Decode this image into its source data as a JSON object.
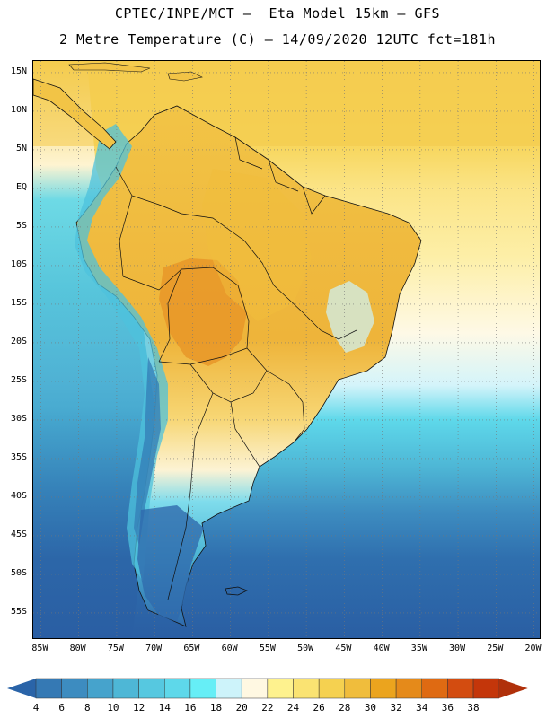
{
  "header": {
    "line1": "CPTEC/INPE/MCT —  Eta Model 15km — GFS",
    "line2": "2 Metre Temperature (C) — 14/09/2020 12UTC fct=181h"
  },
  "map": {
    "lat_labels": [
      "15N",
      "10N",
      "5N",
      "EQ",
      "5S",
      "10S",
      "15S",
      "20S",
      "25S",
      "30S",
      "35S",
      "40S",
      "45S",
      "50S",
      "55S"
    ],
    "lat_values": [
      15,
      10,
      5,
      0,
      -5,
      -10,
      -15,
      -20,
      -25,
      -30,
      -35,
      -40,
      -45,
      -50,
      -55
    ],
    "lon_labels": [
      "85W",
      "80W",
      "75W",
      "70W",
      "65W",
      "60W",
      "55W",
      "50W",
      "45W",
      "40W",
      "35W",
      "30W",
      "25W",
      "20W"
    ],
    "lon_values": [
      -85,
      -80,
      -75,
      -70,
      -65,
      -60,
      -55,
      -50,
      -45,
      -40,
      -35,
      -30,
      -25,
      -20
    ],
    "lon_range": [
      -86,
      -19
    ],
    "lat_range": [
      -58.5,
      16.5
    ],
    "grid": "dotted",
    "regions": "South America, Central America, adjacent Atlantic and Pacific oceans"
  },
  "colorbar": {
    "labels": [
      "4",
      "6",
      "8",
      "10",
      "12",
      "14",
      "16",
      "18",
      "20",
      "22",
      "24",
      "26",
      "28",
      "30",
      "32",
      "34",
      "36",
      "38"
    ],
    "colors": [
      "#2a64a8",
      "#3579b4",
      "#3d8cc0",
      "#46a3cc",
      "#4eb7d6",
      "#56c8e0",
      "#5ed8ea",
      "#66eef6",
      "#cdf3fa",
      "#fff8e2",
      "#fef28e",
      "#fae372",
      "#f5d150",
      "#f0bd3c",
      "#eba41e",
      "#e58a1a",
      "#df6a12",
      "#d34c10",
      "#c4360a",
      "#b0300a"
    ]
  }
}
